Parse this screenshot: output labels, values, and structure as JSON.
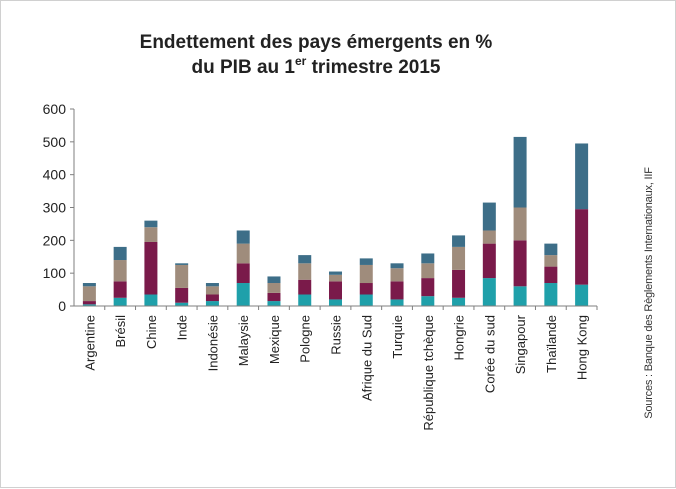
{
  "chart_data": {
    "type": "bar",
    "stacked": true,
    "title_line1": "Endettement des  pays émergents en %",
    "title_line2_prefix": "du PIB au 1",
    "title_line2_sup": "er",
    "title_line2_suffix": " trimestre 2015",
    "categories": [
      "Argentine",
      "Brésil",
      "Chine",
      "Inde",
      "Indonésie",
      "Malaysie",
      "Mexique",
      "Pologne",
      "Russie",
      "Afrique du Sud",
      "Turquie",
      "République tchèque",
      "Hongrie",
      "Corée du sud",
      "Singapour",
      "Thaïlande",
      "Hong Kong"
    ],
    "series": [
      {
        "color": "#1fa0aa",
        "values": [
          5,
          25,
          35,
          10,
          15,
          70,
          15,
          35,
          20,
          35,
          20,
          30,
          25,
          85,
          60,
          70,
          65
        ]
      },
      {
        "color": "#7a1a4a",
        "values": [
          10,
          50,
          160,
          45,
          20,
          60,
          25,
          45,
          55,
          35,
          55,
          55,
          85,
          105,
          140,
          50,
          230
        ]
      },
      {
        "color": "#9f8c7c",
        "values": [
          45,
          65,
          45,
          70,
          25,
          60,
          30,
          50,
          20,
          55,
          40,
          45,
          70,
          40,
          100,
          35,
          0
        ]
      },
      {
        "color": "#3d6e88",
        "values": [
          10,
          40,
          20,
          5,
          10,
          40,
          20,
          25,
          10,
          20,
          15,
          30,
          35,
          85,
          215,
          35,
          200
        ]
      }
    ],
    "ylim": [
      0,
      600
    ],
    "yticks": [
      "0",
      "100",
      "200",
      "300",
      "400",
      "500",
      "600"
    ],
    "grid": false,
    "source": "Sources : Banque des Règlements Internationaux, IIF"
  }
}
